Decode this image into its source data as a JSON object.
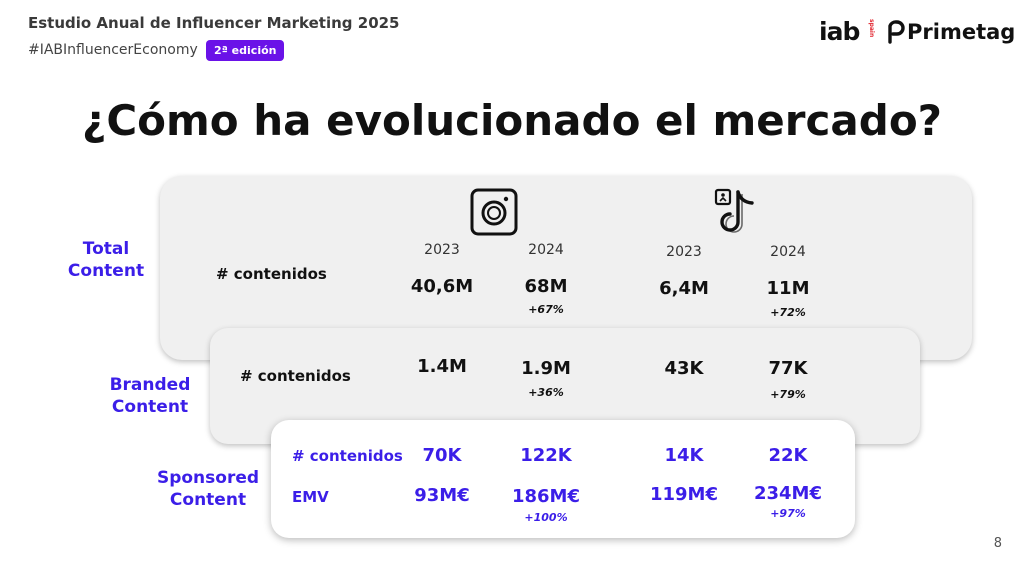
{
  "header": {
    "title": "Estudio Anual de Influencer Marketing 2025",
    "hashtag": "#IABInfluencerEconomy",
    "edition": "2ª edición"
  },
  "logos": {
    "iab": "iab",
    "iab_sub": "spain",
    "primetag": "Primetag"
  },
  "title": "¿Cómo ha evolucionado el mercado?",
  "platforms": [
    {
      "icon": "instagram-icon",
      "years": [
        "2023",
        "2024"
      ]
    },
    {
      "icon": "tiktok-icon",
      "years": [
        "2023",
        "2024"
      ]
    }
  ],
  "sections": {
    "total": {
      "label_line1": "Total",
      "label_line2": "Content",
      "row_label": "# contenidos",
      "values": [
        "40,6M",
        "68M",
        "6,4M",
        "11M"
      ],
      "growth": [
        "",
        "+67%",
        "",
        "+72%"
      ]
    },
    "branded": {
      "label_line1": "Branded",
      "label_line2": "Content",
      "row_label": "# contenidos",
      "values": [
        "1.4M",
        "1.9M",
        "43K",
        "77K"
      ],
      "growth": [
        "",
        "+36%",
        "",
        "+79%"
      ]
    },
    "sponsored": {
      "label_line1": "Sponsored",
      "label_line2": "Content",
      "row1_label": "# contenidos",
      "row1_values": [
        "70K",
        "122K",
        "14K",
        "22K"
      ],
      "row2_label": "EMV",
      "row2_values": [
        "93M€",
        "186M€",
        "119M€",
        "234M€"
      ],
      "row2_growth": [
        "",
        "+100%",
        "",
        "+97%"
      ]
    }
  },
  "page_number": "8",
  "colors": {
    "accent": "#3b1ee8",
    "edition_bg": "#6a12e8",
    "panel": "#f0f0f0"
  }
}
